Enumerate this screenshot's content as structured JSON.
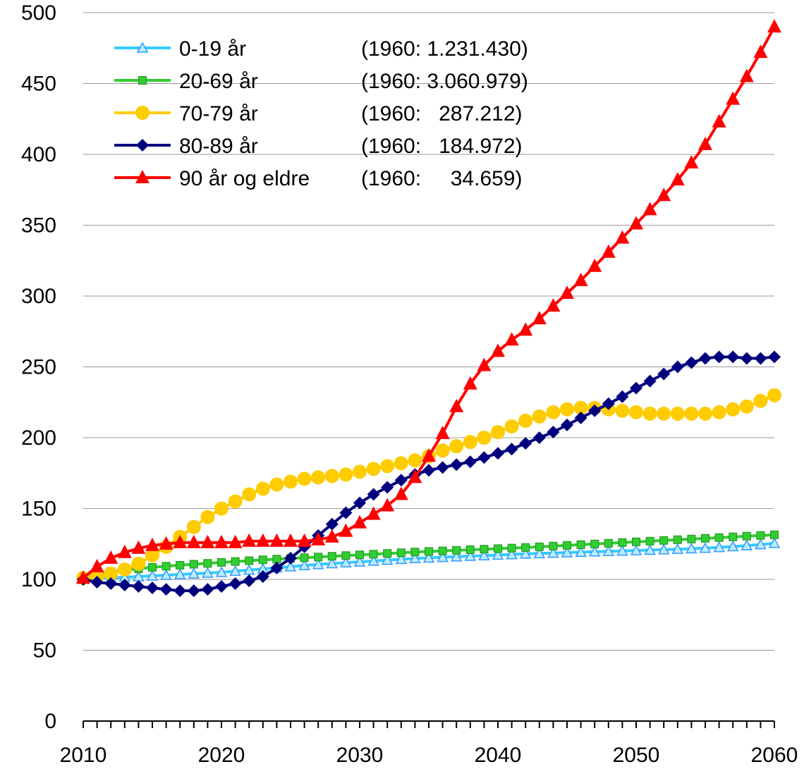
{
  "chart_data": {
    "type": "line",
    "title": "",
    "xlabel": "",
    "ylabel": "",
    "xlim": [
      2010,
      2060
    ],
    "ylim": [
      0,
      500
    ],
    "grid": "horizontal",
    "legend_position": "top-left",
    "x_ticks": [
      "2010",
      "2020",
      "2030",
      "2040",
      "2050",
      "2060"
    ],
    "y_ticks": [
      "0",
      "50",
      "100",
      "150",
      "200",
      "250",
      "300",
      "350",
      "400",
      "450",
      "500"
    ],
    "x": [
      2010,
      2011,
      2012,
      2013,
      2014,
      2015,
      2016,
      2017,
      2018,
      2019,
      2020,
      2021,
      2022,
      2023,
      2024,
      2025,
      2026,
      2027,
      2028,
      2029,
      2030,
      2031,
      2032,
      2033,
      2034,
      2035,
      2036,
      2037,
      2038,
      2039,
      2040,
      2041,
      2042,
      2043,
      2044,
      2045,
      2046,
      2047,
      2048,
      2049,
      2050,
      2051,
      2052,
      2053,
      2054,
      2055,
      2056,
      2057,
      2058,
      2059,
      2060
    ],
    "series": [
      {
        "name": "0-19 år",
        "legend_label": "0-19 år",
        "legend_note": "(1960: 1.231.430)",
        "color": "#33ccff",
        "marker": "triangle-open",
        "values": [
          100,
          100.5,
          101,
          101.5,
          102,
          102.5,
          103,
          103.5,
          104,
          104.5,
          105,
          105.8,
          106.6,
          107.4,
          108.2,
          109,
          109.8,
          110.6,
          111.2,
          111.8,
          112.4,
          113,
          113.6,
          114.2,
          114.8,
          115.2,
          115.6,
          116,
          116.4,
          116.8,
          117.2,
          117.6,
          118,
          118.3,
          118.6,
          118.9,
          119.2,
          119.5,
          119.8,
          120.1,
          120.4,
          120.7,
          121,
          121.3,
          121.7,
          122.1,
          122.6,
          123.2,
          123.9,
          124.6,
          125.5
        ]
      },
      {
        "name": "20-69 år",
        "legend_label": "20-69 år",
        "legend_note": "(1960: 3.060.979)",
        "color": "#33cc33",
        "marker": "square",
        "values": [
          102,
          104,
          105.5,
          106.5,
          107.5,
          108.5,
          109.3,
          110,
          110.7,
          111.3,
          112,
          112.6,
          113.2,
          113.8,
          114.3,
          114.8,
          115.3,
          115.8,
          116.3,
          116.8,
          117.3,
          117.8,
          118.3,
          118.8,
          119.3,
          119.7,
          120.1,
          120.5,
          120.9,
          121.3,
          121.7,
          122.1,
          122.5,
          123,
          123.5,
          124,
          124.5,
          125,
          125.5,
          126,
          126.5,
          127,
          127.5,
          128,
          128.5,
          129,
          129.5,
          130,
          130.5,
          131,
          131.5
        ]
      },
      {
        "name": "70-79 år",
        "legend_label": "70-79 år",
        "legend_note": "(1960:   287.212)",
        "color": "#ffcc00",
        "marker": "circle",
        "values": [
          101,
          102,
          104,
          107,
          111,
          117,
          123,
          130,
          137,
          144,
          150,
          155,
          160,
          164,
          167,
          169,
          171,
          172,
          173,
          174,
          176,
          178,
          180,
          182,
          184,
          187,
          191,
          194,
          197,
          200,
          204,
          208,
          212,
          215,
          218,
          220,
          221,
          221,
          220,
          219,
          218,
          217,
          217,
          217,
          217,
          217,
          218,
          220,
          222,
          226,
          230
        ]
      },
      {
        "name": "80-89 år",
        "legend_label": "80-89 år",
        "legend_note": "(1960:   184.972)",
        "color": "#00007f",
        "marker": "diamond",
        "values": [
          100,
          98,
          97,
          96,
          95,
          94,
          93,
          92,
          92,
          93,
          95,
          97,
          99,
          102,
          108,
          115,
          123,
          131,
          139,
          147,
          154,
          160,
          165,
          170,
          174,
          177,
          179,
          181,
          183,
          186,
          189,
          192,
          196,
          200,
          204,
          209,
          214,
          219,
          224,
          229,
          235,
          240,
          245,
          250,
          253,
          256,
          257,
          257,
          256,
          256,
          257
        ]
      },
      {
        "name": "90 år og eldre",
        "legend_label": "90 år og eldre",
        "legend_note": "(1960:     34.659)",
        "color": "#ff0000",
        "marker": "triangle",
        "values": [
          101,
          109,
          115,
          119,
          122,
          124,
          125,
          126,
          126,
          126,
          126,
          126,
          127,
          127,
          127,
          127,
          127,
          128,
          130,
          134,
          140,
          146,
          152,
          160,
          172,
          187,
          203,
          222,
          238,
          251,
          261,
          269,
          276,
          284,
          293,
          302,
          311,
          321,
          331,
          341,
          351,
          361,
          371,
          382,
          394,
          407,
          423,
          439,
          455,
          472,
          490
        ]
      }
    ]
  }
}
